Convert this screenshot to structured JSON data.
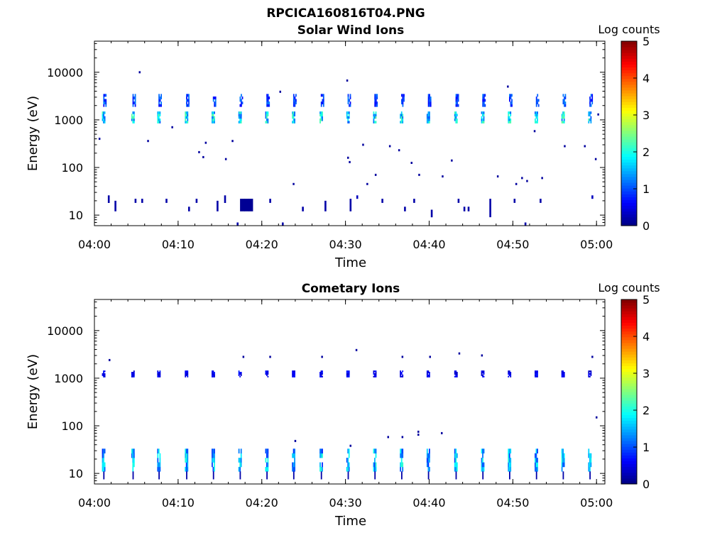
{
  "figure_title": "RPCICA160816T04.PNG",
  "chart_data": [
    {
      "type": "heatmap",
      "title": "Solar Wind Ions",
      "xlabel": "Time",
      "ylabel": "Energy (eV)",
      "yscale": "log",
      "xlim": [
        "04:00",
        "05:01"
      ],
      "ylim": [
        6,
        45000
      ],
      "x_ticks": [
        "04:00",
        "04:10",
        "04:20",
        "04:30",
        "04:40",
        "04:50",
        "05:00"
      ],
      "y_ticks": [
        "10",
        "100",
        "1000",
        "10000"
      ],
      "colorbar": {
        "label": "Log counts",
        "ticks": [
          "0",
          "1",
          "2",
          "3",
          "4",
          "5"
        ],
        "range": [
          0,
          5
        ],
        "colormap": "jet"
      },
      "sweeps_start_min": [
        0.9,
        4.4,
        7.5,
        10.8,
        14.0,
        17.2,
        20.4,
        23.6,
        26.9,
        30.1,
        33.3,
        36.5,
        39.7,
        43.0,
        46.2,
        49.4,
        52.6,
        55.8,
        59.0
      ],
      "main_band": {
        "e_low": 850,
        "e_high": 1500,
        "value_range": [
          1.0,
          2.4
        ]
      },
      "upper_band": {
        "e_low": 1900,
        "e_high": 3500,
        "value_range": [
          0.6,
          1.3
        ]
      },
      "low_energy_cells": [
        {
          "t": 1.6,
          "e0": 18,
          "e1": 26,
          "v": 0.2
        },
        {
          "t": 2.4,
          "e0": 12,
          "e1": 20,
          "v": 0.2
        },
        {
          "t": 4.8,
          "e0": 18,
          "e1": 22,
          "v": 0.2
        },
        {
          "t": 5.6,
          "e0": 18,
          "e1": 22,
          "v": 0.2
        },
        {
          "t": 8.5,
          "e0": 18,
          "e1": 22,
          "v": 0.2
        },
        {
          "t": 11.2,
          "e0": 12,
          "e1": 15,
          "v": 0.2
        },
        {
          "t": 12.1,
          "e0": 18,
          "e1": 22,
          "v": 0.2
        },
        {
          "t": 14.6,
          "e0": 12,
          "e1": 20,
          "v": 0.2
        },
        {
          "t": 15.5,
          "e0": 18,
          "e1": 26,
          "v": 0.2
        },
        {
          "t": 17.4,
          "e0": 12,
          "e1": 22,
          "v": 0.1
        },
        {
          "t": 17.9,
          "e0": 12,
          "e1": 22,
          "v": 0.1
        },
        {
          "t": 18.4,
          "e0": 12,
          "e1": 22,
          "v": 0.1
        },
        {
          "t": 20.9,
          "e0": 18,
          "e1": 22,
          "v": 0.2
        },
        {
          "t": 24.8,
          "e0": 12,
          "e1": 15,
          "v": 0.2
        },
        {
          "t": 27.5,
          "e0": 12,
          "e1": 20,
          "v": 0.2
        },
        {
          "t": 30.5,
          "e0": 12,
          "e1": 22,
          "v": 0.2
        },
        {
          "t": 31.3,
          "e0": 22,
          "e1": 26,
          "v": 0.3
        },
        {
          "t": 34.3,
          "e0": 18,
          "e1": 22,
          "v": 0.2
        },
        {
          "t": 37.0,
          "e0": 12,
          "e1": 15,
          "v": 0.2
        },
        {
          "t": 38.1,
          "e0": 18,
          "e1": 22,
          "v": 0.2
        },
        {
          "t": 40.2,
          "e0": 9,
          "e1": 13,
          "v": 0.2
        },
        {
          "t": 43.4,
          "e0": 18,
          "e1": 22,
          "v": 0.2
        },
        {
          "t": 44.1,
          "e0": 12,
          "e1": 15,
          "v": 0.2
        },
        {
          "t": 44.6,
          "e0": 12,
          "e1": 15,
          "v": 0.2
        },
        {
          "t": 47.2,
          "e0": 9,
          "e1": 22,
          "v": 0.2
        },
        {
          "t": 50.1,
          "e0": 18,
          "e1": 22,
          "v": 0.2
        },
        {
          "t": 53.2,
          "e0": 18,
          "e1": 22,
          "v": 0.2
        },
        {
          "t": 59.4,
          "e0": 22,
          "e1": 26,
          "v": 0.3
        },
        {
          "t": 17.0,
          "e0": 6,
          "e1": 7,
          "v": 0.2
        },
        {
          "t": 22.4,
          "e0": 6,
          "e1": 7,
          "v": 0.2
        },
        {
          "t": 51.4,
          "e0": 6,
          "e1": 7,
          "v": 0.2
        }
      ],
      "scatter_points": [
        {
          "t": 0.5,
          "e": 400
        },
        {
          "t": 5.3,
          "e": 10000
        },
        {
          "t": 6.3,
          "e": 360
        },
        {
          "t": 9.2,
          "e": 700
        },
        {
          "t": 12.4,
          "e": 210
        },
        {
          "t": 12.9,
          "e": 165
        },
        {
          "t": 13.2,
          "e": 330
        },
        {
          "t": 15.6,
          "e": 150
        },
        {
          "t": 16.4,
          "e": 360
        },
        {
          "t": 22.1,
          "e": 3900
        },
        {
          "t": 23.7,
          "e": 45
        },
        {
          "t": 30.1,
          "e": 6700
        },
        {
          "t": 30.2,
          "e": 160
        },
        {
          "t": 30.4,
          "e": 130
        },
        {
          "t": 32.0,
          "e": 300
        },
        {
          "t": 32.5,
          "e": 45
        },
        {
          "t": 33.5,
          "e": 70
        },
        {
          "t": 35.2,
          "e": 280
        },
        {
          "t": 36.3,
          "e": 230
        },
        {
          "t": 37.8,
          "e": 125
        },
        {
          "t": 38.7,
          "e": 70
        },
        {
          "t": 41.5,
          "e": 65
        },
        {
          "t": 42.6,
          "e": 140
        },
        {
          "t": 48.1,
          "e": 65
        },
        {
          "t": 49.3,
          "e": 5000
        },
        {
          "t": 50.3,
          "e": 45
        },
        {
          "t": 51.0,
          "e": 60
        },
        {
          "t": 51.6,
          "e": 52
        },
        {
          "t": 52.5,
          "e": 580
        },
        {
          "t": 53.4,
          "e": 60
        },
        {
          "t": 56.1,
          "e": 280
        },
        {
          "t": 58.5,
          "e": 280
        },
        {
          "t": 59.8,
          "e": 150
        },
        {
          "t": 60.1,
          "e": 1300
        }
      ]
    },
    {
      "type": "heatmap",
      "title": "Cometary Ions",
      "xlabel": "Time",
      "ylabel": "Energy (eV)",
      "yscale": "log",
      "xlim": [
        "04:00",
        "05:01"
      ],
      "ylim": [
        6,
        45000
      ],
      "x_ticks": [
        "04:00",
        "04:10",
        "04:20",
        "04:30",
        "04:40",
        "04:50",
        "05:00"
      ],
      "y_ticks": [
        "10",
        "100",
        "1000",
        "10000"
      ],
      "colorbar": {
        "label": "Log counts",
        "ticks": [
          "0",
          "1",
          "2",
          "3",
          "4",
          "5"
        ],
        "range": [
          0,
          5
        ],
        "colormap": "jet"
      },
      "sweeps_start_min": [
        0.9,
        4.4,
        7.5,
        10.8,
        14.0,
        17.2,
        20.4,
        23.6,
        26.9,
        30.1,
        33.3,
        36.5,
        39.7,
        43.0,
        46.2,
        49.4,
        52.6,
        55.8,
        59.0
      ],
      "mid_band": {
        "e_low": 1050,
        "e_high": 1450,
        "value_range": [
          0.3,
          0.8
        ]
      },
      "low_band": {
        "e_low": 11,
        "e_high": 33,
        "value_range": [
          0.8,
          2.1
        ]
      },
      "scatter_points": [
        {
          "t": 1.7,
          "e": 2400
        },
        {
          "t": 17.7,
          "e": 2800
        },
        {
          "t": 20.9,
          "e": 2800
        },
        {
          "t": 23.9,
          "e": 48
        },
        {
          "t": 27.1,
          "e": 2800
        },
        {
          "t": 30.5,
          "e": 38
        },
        {
          "t": 31.2,
          "e": 3900
        },
        {
          "t": 35.0,
          "e": 58
        },
        {
          "t": 36.7,
          "e": 2800
        },
        {
          "t": 36.7,
          "e": 58
        },
        {
          "t": 38.6,
          "e": 65
        },
        {
          "t": 38.6,
          "e": 75
        },
        {
          "t": 40.0,
          "e": 2800
        },
        {
          "t": 41.4,
          "e": 70
        },
        {
          "t": 43.5,
          "e": 3300
        },
        {
          "t": 46.2,
          "e": 3000
        },
        {
          "t": 59.4,
          "e": 2800
        },
        {
          "t": 59.9,
          "e": 150
        }
      ]
    }
  ]
}
